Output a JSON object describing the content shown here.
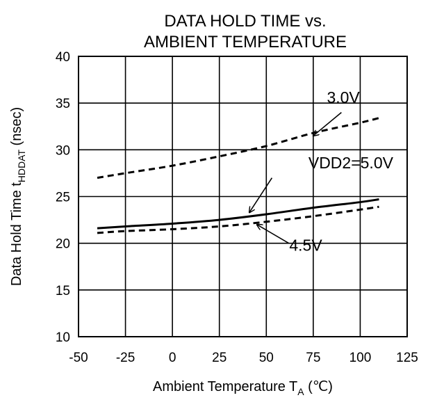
{
  "chart_data": {
    "type": "line",
    "title_lines": [
      "DATA HOLD TIME vs.",
      "AMBIENT TEMPERATURE"
    ],
    "xlabel": {
      "main": "Ambient Temperature",
      "symbol": "T",
      "subscript": "A",
      "unit": "(℃)"
    },
    "ylabel": {
      "main": "Data Hold Time",
      "symbol": "t",
      "subscript": "HDDAT",
      "unit": "(nsec)"
    },
    "xlim": [
      -50,
      125
    ],
    "ylim": [
      10,
      40
    ],
    "xticks": [
      -50,
      -25,
      0,
      25,
      50,
      75,
      100,
      125
    ],
    "yticks": [
      10,
      15,
      20,
      25,
      30,
      35,
      40
    ],
    "grid": true,
    "series": [
      {
        "name": "3.0V",
        "style": "dashed",
        "x": [
          -40,
          -25,
          0,
          25,
          50,
          75,
          100,
          110
        ],
        "y": [
          27.0,
          27.5,
          28.3,
          29.3,
          30.4,
          31.8,
          32.9,
          33.4
        ]
      },
      {
        "name": "VDD2=5.0V",
        "style": "solid",
        "x": [
          -40,
          -25,
          0,
          25,
          50,
          75,
          100,
          110
        ],
        "y": [
          21.6,
          21.8,
          22.1,
          22.5,
          23.1,
          23.8,
          24.4,
          24.7
        ]
      },
      {
        "name": "4.5V",
        "style": "dashed",
        "x": [
          -40,
          -25,
          0,
          25,
          50,
          75,
          100,
          110
        ],
        "y": [
          21.1,
          21.3,
          21.5,
          21.8,
          22.3,
          22.9,
          23.6,
          23.9
        ]
      }
    ],
    "annotations": [
      {
        "text": "3.0V",
        "series": "3.0V",
        "text_x": 91,
        "text_y": 35,
        "arrow_from": [
          90,
          34.0
        ],
        "arrow_to": [
          75,
          31.5
        ]
      },
      {
        "text": "VDD2=5.0V",
        "series": "VDD2=5.0V",
        "text_x": 95,
        "text_y": 28.0,
        "arrow_from": [
          53,
          27.0
        ],
        "arrow_to": [
          41,
          23.3
        ]
      },
      {
        "text": "4.5V",
        "series": "4.5V",
        "text_x": 71,
        "text_y": 19.2,
        "arrow_from": [
          62,
          20.0
        ],
        "arrow_to": [
          45,
          22.0
        ]
      }
    ]
  }
}
